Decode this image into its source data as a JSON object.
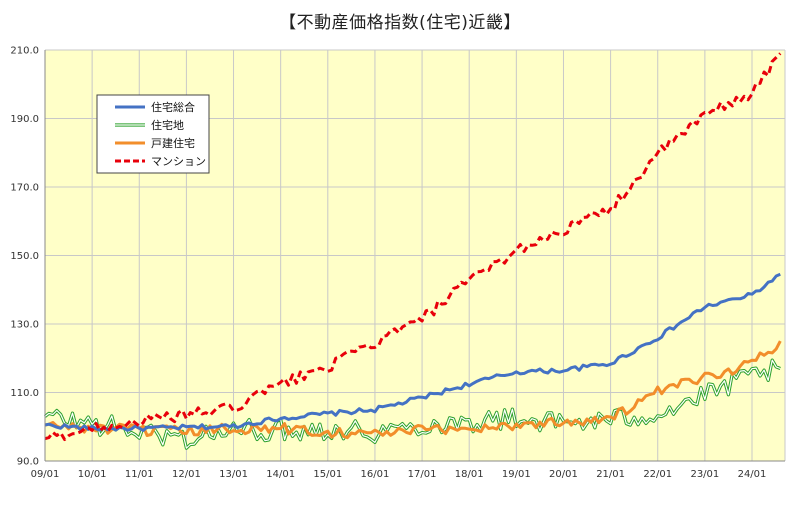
{
  "chart_data": {
    "type": "line",
    "title": "【不動産価格指数(住宅)近畿】",
    "xlabel": "",
    "ylabel": "",
    "ylim": [
      90,
      210
    ],
    "yticks": [
      "90.0",
      "110.0",
      "130.0",
      "150.0",
      "170.0",
      "190.0",
      "210.0"
    ],
    "x_tick_labels": [
      "09/01",
      "10/01",
      "11/01",
      "12/01",
      "13/01",
      "14/01",
      "15/01",
      "16/01",
      "17/01",
      "18/01",
      "19/01",
      "20/01",
      "21/01",
      "22/01",
      "23/01",
      "24/01"
    ],
    "x_unit": "year",
    "x_start_label": "09/01",
    "x_end_label": "24/08",
    "grid": true,
    "legend_position": "top-left",
    "plot_background": "#ffffc8",
    "series": [
      {
        "name": "住宅総合",
        "color": "#4472c4",
        "line_style": "solid",
        "values": [
          [
            2009.0,
            100.5
          ],
          [
            2010.0,
            99.5
          ],
          [
            2011.0,
            99.5
          ],
          [
            2012.0,
            99.8
          ],
          [
            2013.0,
            100.2
          ],
          [
            2014.0,
            102.5
          ],
          [
            2015.0,
            103.8
          ],
          [
            2016.0,
            105.0
          ],
          [
            2017.0,
            108.5
          ],
          [
            2018.0,
            112.5
          ],
          [
            2019.0,
            116.0
          ],
          [
            2020.0,
            116.5
          ],
          [
            2021.0,
            118.5
          ],
          [
            2022.0,
            126.0
          ],
          [
            2023.0,
            135.0
          ],
          [
            2024.0,
            138.5
          ],
          [
            2024.6,
            144.5
          ]
        ]
      },
      {
        "name": "住宅地",
        "color": "#2ca02c",
        "line_style": "double",
        "values": [
          [
            2009.0,
            103.0
          ],
          [
            2010.0,
            101.0
          ],
          [
            2011.0,
            98.5
          ],
          [
            2012.0,
            96.5
          ],
          [
            2013.0,
            99.0
          ],
          [
            2014.0,
            99.0
          ],
          [
            2015.0,
            99.5
          ],
          [
            2016.0,
            98.5
          ],
          [
            2017.0,
            100.5
          ],
          [
            2018.0,
            101.5
          ],
          [
            2019.0,
            102.5
          ],
          [
            2020.0,
            101.0
          ],
          [
            2021.0,
            102.0
          ],
          [
            2022.0,
            104.0
          ],
          [
            2023.0,
            109.0
          ],
          [
            2024.0,
            115.0
          ],
          [
            2024.6,
            117.0
          ]
        ]
      },
      {
        "name": "戸建住宅",
        "color": "#f28e2b",
        "line_style": "solid",
        "values": [
          [
            2009.0,
            100.5
          ],
          [
            2010.0,
            99.5
          ],
          [
            2011.0,
            99.0
          ],
          [
            2012.0,
            98.5
          ],
          [
            2013.0,
            99.5
          ],
          [
            2014.0,
            99.5
          ],
          [
            2015.0,
            98.5
          ],
          [
            2016.0,
            98.0
          ],
          [
            2017.0,
            99.0
          ],
          [
            2018.0,
            99.5
          ],
          [
            2019.0,
            100.5
          ],
          [
            2020.0,
            101.5
          ],
          [
            2021.0,
            102.5
          ],
          [
            2022.0,
            110.0
          ],
          [
            2023.0,
            114.5
          ],
          [
            2024.0,
            118.5
          ],
          [
            2024.6,
            125.0
          ]
        ]
      },
      {
        "name": "マンション",
        "color": "#e8000b",
        "line_style": "dashed",
        "values": [
          [
            2009.0,
            96.5
          ],
          [
            2010.0,
            99.5
          ],
          [
            2011.0,
            101.5
          ],
          [
            2012.0,
            103.5
          ],
          [
            2013.0,
            105.5
          ],
          [
            2014.0,
            112.5
          ],
          [
            2015.0,
            117.5
          ],
          [
            2016.0,
            124.5
          ],
          [
            2017.0,
            131.5
          ],
          [
            2018.0,
            142.5
          ],
          [
            2019.0,
            151.5
          ],
          [
            2020.0,
            157.5
          ],
          [
            2021.0,
            163.5
          ],
          [
            2022.0,
            179.5
          ],
          [
            2023.0,
            191.0
          ],
          [
            2024.0,
            197.5
          ],
          [
            2024.6,
            209.0
          ]
        ]
      }
    ]
  }
}
